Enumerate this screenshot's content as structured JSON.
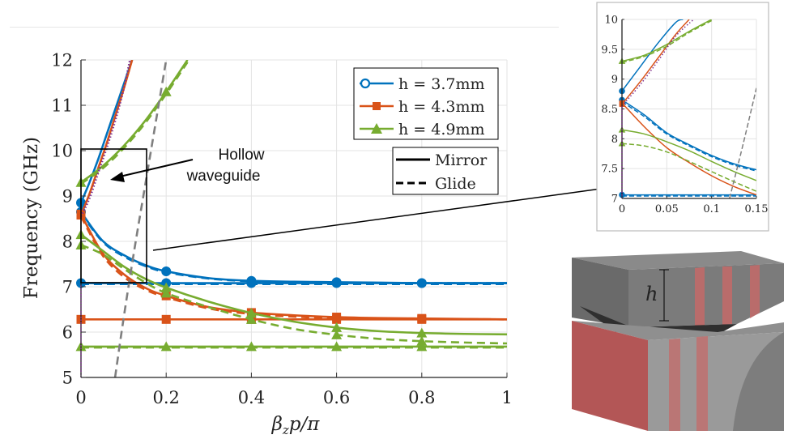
{
  "chart_data": [
    {
      "type": "line",
      "title": "",
      "xlabel": "βzp/π",
      "ylabel": "Frequency (GHz)",
      "xlim": [
        0,
        1
      ],
      "ylim": [
        5,
        12
      ],
      "xticks": [
        "0",
        "0.2",
        "0.4",
        "0.6",
        "0.8",
        "1"
      ],
      "yticks": [
        "5",
        "6",
        "7",
        "8",
        "9",
        "10",
        "11",
        "12"
      ],
      "grid": true,
      "legend_position": "top-right",
      "legend_series": [
        {
          "label": "h = 3.7mm",
          "color": "#0072BD",
          "marker": "circle"
        },
        {
          "label": "h = 4.3mm",
          "color": "#D95319",
          "marker": "square"
        },
        {
          "label": "h = 4.9mm",
          "color": "#77AC30",
          "marker": "triangle"
        }
      ],
      "legend_styles": [
        {
          "label": "Mirror",
          "style": "solid"
        },
        {
          "label": "Glide",
          "style": "dashed"
        }
      ],
      "annotation": {
        "line1": "Hollow",
        "line2": "waveguide"
      },
      "series": [
        {
          "color": "#0072BD",
          "dashed": false,
          "marker": "circle",
          "x": [
            0,
            0.1,
            0.2,
            0.4,
            0.6,
            0.8,
            1
          ],
          "y": [
            7.08,
            7.08,
            7.08,
            7.08,
            7.08,
            7.08,
            7.08
          ]
        },
        {
          "color": "#0072BD",
          "dashed": true,
          "marker": "none",
          "x": [
            0,
            0.2,
            0.4,
            0.6,
            0.8,
            1
          ],
          "y": [
            7.06,
            7.06,
            7.06,
            7.06,
            7.06,
            7.06
          ]
        },
        {
          "color": "#0072BD",
          "dashed": false,
          "marker": "circle",
          "x": [
            0,
            0.05,
            0.1,
            0.15,
            0.2,
            0.3,
            0.4,
            0.5,
            0.6,
            0.7,
            0.8,
            0.9,
            1
          ],
          "y": [
            8.65,
            8.02,
            7.7,
            7.48,
            7.34,
            7.19,
            7.13,
            7.11,
            7.1,
            7.09,
            7.08,
            7.08,
            7.08
          ]
        },
        {
          "color": "#0072BD",
          "dashed": true,
          "marker": "none",
          "x": [
            0,
            0.05,
            0.1,
            0.15,
            0.2,
            0.3,
            0.4,
            0.5,
            0.6,
            0.8,
            1
          ],
          "y": [
            8.62,
            8.0,
            7.67,
            7.46,
            7.32,
            7.18,
            7.12,
            7.1,
            7.09,
            7.08,
            7.08
          ]
        },
        {
          "color": "#0072BD",
          "dashed": false,
          "marker": "circle",
          "x": [
            0,
            0.02,
            0.04,
            0.06,
            0.08,
            0.1,
            0.12
          ],
          "y": [
            8.85,
            9.3,
            9.8,
            10.35,
            10.9,
            11.45,
            12.0
          ]
        },
        {
          "color": "#D95319",
          "dashed": false,
          "marker": "square",
          "x": [
            0,
            0.2,
            0.4,
            0.6,
            0.8,
            1
          ],
          "y": [
            6.28,
            6.28,
            6.28,
            6.28,
            6.28,
            6.28
          ]
        },
        {
          "color": "#D95319",
          "dashed": false,
          "marker": "square",
          "x": [
            0,
            0.05,
            0.1,
            0.15,
            0.2,
            0.3,
            0.4,
            0.5,
            0.6,
            0.7,
            0.8,
            0.9,
            1
          ],
          "y": [
            8.6,
            7.75,
            7.28,
            6.98,
            6.8,
            6.55,
            6.43,
            6.37,
            6.33,
            6.31,
            6.3,
            6.29,
            6.28
          ]
        },
        {
          "color": "#D95319",
          "dashed": true,
          "marker": "none",
          "x": [
            0,
            0.05,
            0.1,
            0.15,
            0.2,
            0.3,
            0.4,
            0.5,
            0.6,
            0.8,
            1
          ],
          "y": [
            8.55,
            7.7,
            7.22,
            6.94,
            6.77,
            6.52,
            6.4,
            6.34,
            6.31,
            6.29,
            6.28
          ]
        },
        {
          "color": "#D95319",
          "dashed": false,
          "marker": "square",
          "x": [
            0,
            0.02,
            0.04,
            0.06,
            0.08,
            0.1,
            0.12
          ],
          "y": [
            8.58,
            9.05,
            9.6,
            10.15,
            10.75,
            11.35,
            12.0
          ]
        },
        {
          "color": "#77AC30",
          "dashed": false,
          "marker": "triangle",
          "x": [
            0,
            0.2,
            0.4,
            0.6,
            0.8,
            1
          ],
          "y": [
            5.68,
            5.68,
            5.68,
            5.68,
            5.68,
            5.68
          ]
        },
        {
          "color": "#77AC30",
          "dashed": true,
          "marker": "none",
          "x": [
            0,
            0.2,
            0.4,
            0.6,
            0.8,
            1
          ],
          "y": [
            5.66,
            5.66,
            5.66,
            5.66,
            5.66,
            5.66
          ]
        },
        {
          "color": "#77AC30",
          "dashed": false,
          "marker": "triangle",
          "x": [
            0,
            0.05,
            0.1,
            0.15,
            0.2,
            0.3,
            0.4,
            0.5,
            0.6,
            0.7,
            0.8,
            0.9,
            1
          ],
          "y": [
            8.15,
            7.8,
            7.45,
            7.18,
            6.98,
            6.67,
            6.42,
            6.23,
            6.1,
            6.02,
            5.98,
            5.96,
            5.95
          ]
        },
        {
          "color": "#77AC30",
          "dashed": true,
          "marker": "triangle",
          "x": [
            0,
            0.05,
            0.1,
            0.15,
            0.2,
            0.3,
            0.4,
            0.5,
            0.6,
            0.7,
            0.8,
            0.9,
            1
          ],
          "y": [
            7.92,
            7.72,
            7.4,
            7.1,
            6.86,
            6.55,
            6.28,
            6.07,
            5.94,
            5.85,
            5.8,
            5.77,
            5.75
          ]
        },
        {
          "color": "#77AC30",
          "dashed": false,
          "marker": "triangle",
          "x": [
            0,
            0.05,
            0.1,
            0.15,
            0.2,
            0.25
          ],
          "y": [
            9.3,
            9.65,
            10.1,
            10.65,
            11.3,
            12.0
          ]
        },
        {
          "color": "#77AC30",
          "dashed": true,
          "marker": "none",
          "x": [
            0,
            0.05,
            0.1,
            0.15,
            0.2,
            0.25
          ],
          "y": [
            9.27,
            9.6,
            10.05,
            10.6,
            11.25,
            11.95
          ]
        },
        {
          "color": "#7E2F8E",
          "dashed": "dotted",
          "marker": "none",
          "x": [
            0,
            0.02,
            0.04,
            0.06,
            0.08,
            0.1,
            0.115
          ],
          "y": [
            8.55,
            8.95,
            9.5,
            10.05,
            10.65,
            11.35,
            12.0
          ]
        },
        {
          "color": "#7F7F7F",
          "dashed": true,
          "marker": "none",
          "x": [
            0.08,
            0.1,
            0.125,
            0.15,
            0.175,
            0.2
          ],
          "y": [
            5.0,
            6.3,
            7.8,
            9.2,
            10.6,
            12.0
          ]
        }
      ]
    },
    {
      "type": "line",
      "title": "",
      "xlabel": "",
      "ylabel": "",
      "xlim": [
        0,
        0.15
      ],
      "ylim": [
        7,
        10
      ],
      "xticks": [
        "0",
        "0.05",
        "0.1",
        "0.15"
      ],
      "yticks": [
        "7",
        "7.5",
        "8",
        "8.5",
        "9",
        "9.5",
        "10"
      ],
      "grid": true,
      "series": [
        {
          "color": "#0072BD",
          "dashed": false,
          "marker": "circle",
          "x": [
            0,
            0.15
          ],
          "y": [
            7.06,
            7.06
          ]
        },
        {
          "color": "#0072BD",
          "dashed": true,
          "marker": "none",
          "x": [
            0,
            0.15
          ],
          "y": [
            7.04,
            7.04
          ]
        },
        {
          "color": "#0072BD",
          "dashed": false,
          "marker": "circle",
          "x": [
            0,
            0.025,
            0.05,
            0.075,
            0.1,
            0.125,
            0.15
          ],
          "y": [
            8.65,
            8.4,
            8.1,
            7.9,
            7.72,
            7.58,
            7.48
          ]
        },
        {
          "color": "#0072BD",
          "dashed": true,
          "marker": "none",
          "x": [
            0,
            0.025,
            0.05,
            0.075,
            0.1,
            0.125,
            0.15
          ],
          "y": [
            8.62,
            8.37,
            8.08,
            7.88,
            7.7,
            7.56,
            7.46
          ]
        },
        {
          "color": "#0072BD",
          "dashed": false,
          "marker": "circle",
          "x": [
            0,
            0.02,
            0.04,
            0.06,
            0.068
          ],
          "y": [
            8.8,
            9.2,
            9.6,
            9.95,
            10.0
          ]
        },
        {
          "color": "#D95319",
          "dashed": false,
          "marker": "square",
          "x": [
            0,
            0.025,
            0.05,
            0.075,
            0.1,
            0.125,
            0.15
          ],
          "y": [
            8.6,
            8.2,
            7.85,
            7.6,
            7.38,
            7.2,
            7.06
          ]
        },
        {
          "color": "#D95319",
          "dashed": false,
          "marker": "square",
          "x": [
            0,
            0.02,
            0.04,
            0.06,
            0.075
          ],
          "y": [
            8.58,
            8.95,
            9.35,
            9.75,
            10.0
          ]
        },
        {
          "color": "#77AC30",
          "dashed": false,
          "marker": "triangle",
          "x": [
            0,
            0.025,
            0.05,
            0.075,
            0.1,
            0.125,
            0.15
          ],
          "y": [
            8.15,
            8.08,
            7.95,
            7.8,
            7.62,
            7.45,
            7.3
          ]
        },
        {
          "color": "#77AC30",
          "dashed": true,
          "marker": "triangle",
          "x": [
            0,
            0.025,
            0.05,
            0.075,
            0.1,
            0.125,
            0.15
          ],
          "y": [
            7.92,
            7.88,
            7.78,
            7.62,
            7.45,
            7.28,
            7.12
          ]
        },
        {
          "color": "#77AC30",
          "dashed": false,
          "marker": "triangle",
          "x": [
            0,
            0.025,
            0.05,
            0.075,
            0.1
          ],
          "y": [
            9.3,
            9.4,
            9.58,
            9.8,
            10.0
          ]
        },
        {
          "color": "#77AC30",
          "dashed": true,
          "marker": "none",
          "x": [
            0,
            0.025,
            0.05,
            0.075,
            0.1
          ],
          "y": [
            9.28,
            9.38,
            9.55,
            9.78,
            9.98
          ]
        },
        {
          "color": "#7E2F8E",
          "dashed": "dotted",
          "marker": "none",
          "x": [
            0,
            0.02,
            0.04,
            0.06,
            0.08
          ],
          "y": [
            8.55,
            8.9,
            9.3,
            9.72,
            10.0
          ]
        },
        {
          "color": "#7F7F7F",
          "dashed": true,
          "marker": "none",
          "x": [
            0.12,
            0.135,
            0.15
          ],
          "y": [
            7.0,
            7.9,
            8.85
          ]
        }
      ]
    }
  ],
  "illustration": {
    "label": "h",
    "top_color": "#6f6f6f",
    "bottom_color": "#b55a5a",
    "stripe_color": "#d06a68"
  }
}
